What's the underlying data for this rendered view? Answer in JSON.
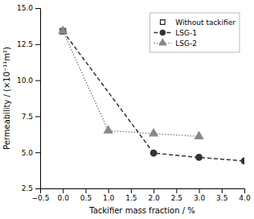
{
  "chart_data": {
    "type": "line",
    "xlabel": "Tackifier mass fraction / %",
    "ylabel": "Permeability / (×10⁻¹¹m²)",
    "series": [
      {
        "name": "Without tackifier",
        "color": "#222222",
        "marker": "open-square",
        "line_style": "none",
        "x": [
          0
        ],
        "values": [
          13.4
        ]
      },
      {
        "name": "LSG-1",
        "color": "#333333",
        "marker": "circle",
        "line_style": "dashed",
        "x": [
          0,
          2,
          3,
          4
        ],
        "values": [
          13.4,
          4.95,
          4.65,
          4.4
        ]
      },
      {
        "name": "LSG-2",
        "color": "#888888",
        "marker": "triangle",
        "line_style": "dotted",
        "x": [
          0,
          1,
          2,
          3
        ],
        "values": [
          13.4,
          6.5,
          6.3,
          6.1
        ]
      }
    ],
    "xlim": [
      -0.5,
      4.0
    ],
    "xticks": [
      {
        "value": -0.5,
        "label": "−0.5"
      },
      {
        "value": 0,
        "label": "0.0"
      },
      0.5,
      {
        "value": 1,
        "label": "1.0"
      },
      1.5,
      {
        "value": 2,
        "label": "2.0"
      },
      2.5,
      {
        "value": 3,
        "label": "3.0"
      },
      3.5,
      {
        "value": 4,
        "label": "4.0"
      }
    ],
    "ylim": [
      2.5,
      15.0
    ],
    "yticks": [
      2.5,
      {
        "value": 5,
        "label": "5.0"
      },
      7.5,
      {
        "value": 10,
        "label": "10.0"
      },
      12.5,
      {
        "value": 15,
        "label": "15.0"
      }
    ],
    "grid": false,
    "legend": "upper-right"
  }
}
